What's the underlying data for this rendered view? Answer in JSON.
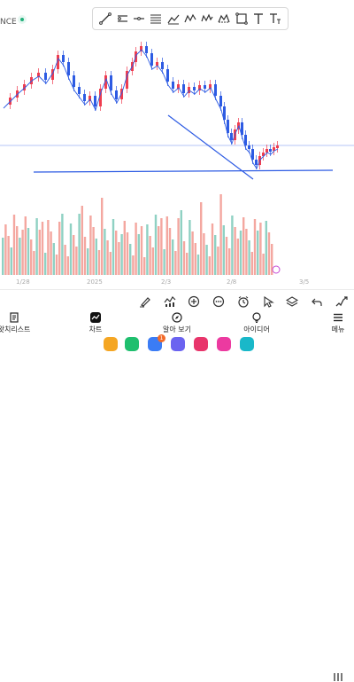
{
  "header": {
    "symbol_fragment": "NCE",
    "status_color": "#22b07a",
    "drawing_tools": [
      "trend-line-icon",
      "horizontal-ray-icon",
      "horizontal-line-icon",
      "parallel-channel-icon",
      "fib-retracement-icon",
      "pitchfork-icon",
      "elliott-wave-icon",
      "xabcd-pattern-icon",
      "rectangle-icon",
      "text-icon",
      "text-size-icon"
    ]
  },
  "chart": {
    "up_color": "#ef3d4f",
    "down_color": "#2d5be3",
    "ma_color": "#2d5be3",
    "volume_up_color": "#f4a7a0",
    "volume_down_color": "#8fd1c3",
    "trendline_color": "#2d5be3",
    "price_line_color": "#9bb0f5",
    "x_labels": [
      "1/28",
      "2025",
      "2/3",
      "2/8",
      "3/5"
    ]
  },
  "drawbar": {
    "icons": [
      "brush-icon",
      "indicators-icon",
      "compare-icon",
      "more-dots-icon",
      "alert-clock-icon",
      "cursor-icon",
      "layers-icon",
      "undo-icon",
      "replay-icon"
    ]
  },
  "nav": {
    "items": [
      {
        "label": "왓치리스트",
        "icon": "watchlist-icon"
      },
      {
        "label": "차트",
        "icon": "chart-icon"
      },
      {
        "label": "알아 보기",
        "icon": "explore-icon"
      },
      {
        "label": "아이디어",
        "icon": "ideas-icon"
      },
      {
        "label": "메뉴",
        "icon": "menu-icon"
      }
    ]
  },
  "dock": {
    "apps": [
      {
        "name": "folder-app-icon",
        "color": "#f5a623"
      },
      {
        "name": "phone-app-icon",
        "color": "#1fbf6e"
      },
      {
        "name": "messages-app-icon",
        "color": "#3b7cf5"
      },
      {
        "name": "internet-app-icon",
        "color": "#6b63f0"
      },
      {
        "name": "camera-app-icon",
        "color": "#e8356b"
      },
      {
        "name": "gallery-app-icon",
        "color": "#ec3aa0"
      },
      {
        "name": "notes-app-icon",
        "color": "#19b8c9"
      }
    ],
    "badge_count": "1"
  }
}
